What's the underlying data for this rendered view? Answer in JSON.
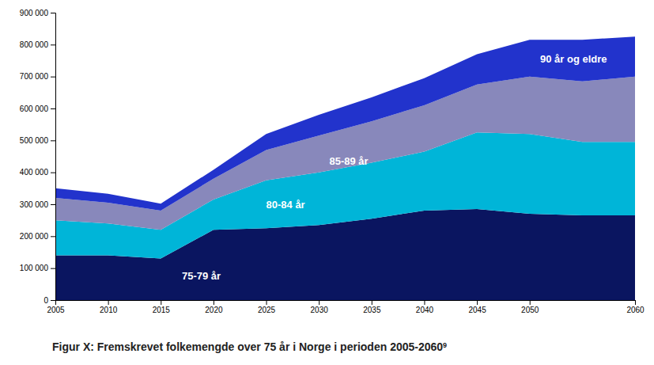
{
  "chart_data": {
    "type": "area",
    "stacked": true,
    "title": "Figur X: Fremskrevet folkemengde over 75 år i Norge i perioden 2005-2060",
    "title_superscript": "9",
    "x": [
      2005,
      2010,
      2015,
      2020,
      2025,
      2030,
      2035,
      2040,
      2045,
      2050,
      2055,
      2060
    ],
    "series": [
      {
        "name": "75-79 år",
        "color": "#0a1560",
        "values": [
          140000,
          140000,
          130000,
          220000,
          225000,
          235000,
          255000,
          280000,
          285000,
          270000,
          265000,
          265000
        ]
      },
      {
        "name": "80-84 år",
        "color": "#00b5d8",
        "values": [
          110000,
          100000,
          90000,
          95000,
          150000,
          165000,
          175000,
          185000,
          240000,
          250000,
          230000,
          230000
        ]
      },
      {
        "name": "85-89 år",
        "color": "#8888bb",
        "values": [
          70000,
          65000,
          60000,
          65000,
          95000,
          115000,
          130000,
          145000,
          150000,
          180000,
          190000,
          205000
        ]
      },
      {
        "name": "90 år og eldre",
        "color": "#2233cc",
        "values": [
          30000,
          28000,
          22000,
          28000,
          50000,
          65000,
          75000,
          85000,
          95000,
          115000,
          130000,
          125000
        ]
      }
    ],
    "annotations": [
      {
        "text": "75-79 år",
        "x": 2017,
        "y": 75000
      },
      {
        "text": "80-84 år",
        "x": 2025,
        "y": 300000
      },
      {
        "text": "85-89 år",
        "x": 2031,
        "y": 435000
      },
      {
        "text": "90 år og eldre",
        "x": 2051,
        "y": 755000
      }
    ],
    "xlim": [
      2005,
      2060
    ],
    "xticks": [
      2005,
      2010,
      2015,
      2020,
      2025,
      2030,
      2035,
      2040,
      2045,
      2050,
      2060
    ],
    "ylim": [
      0,
      900000
    ],
    "yticks": [
      0,
      {
        "value": 100000,
        "label": "100 000"
      },
      {
        "value": 200000,
        "label": "200 000"
      },
      {
        "value": 300000,
        "label": "300 000"
      },
      {
        "value": 400000,
        "label": "400 000"
      },
      {
        "value": 500000,
        "label": "500 000"
      },
      {
        "value": 600000,
        "label": "600 000"
      },
      {
        "value": 700000,
        "label": "700 000"
      },
      {
        "value": 800000,
        "label": "800 000"
      },
      {
        "value": 900000,
        "label": "900 000"
      }
    ],
    "grid": false
  }
}
